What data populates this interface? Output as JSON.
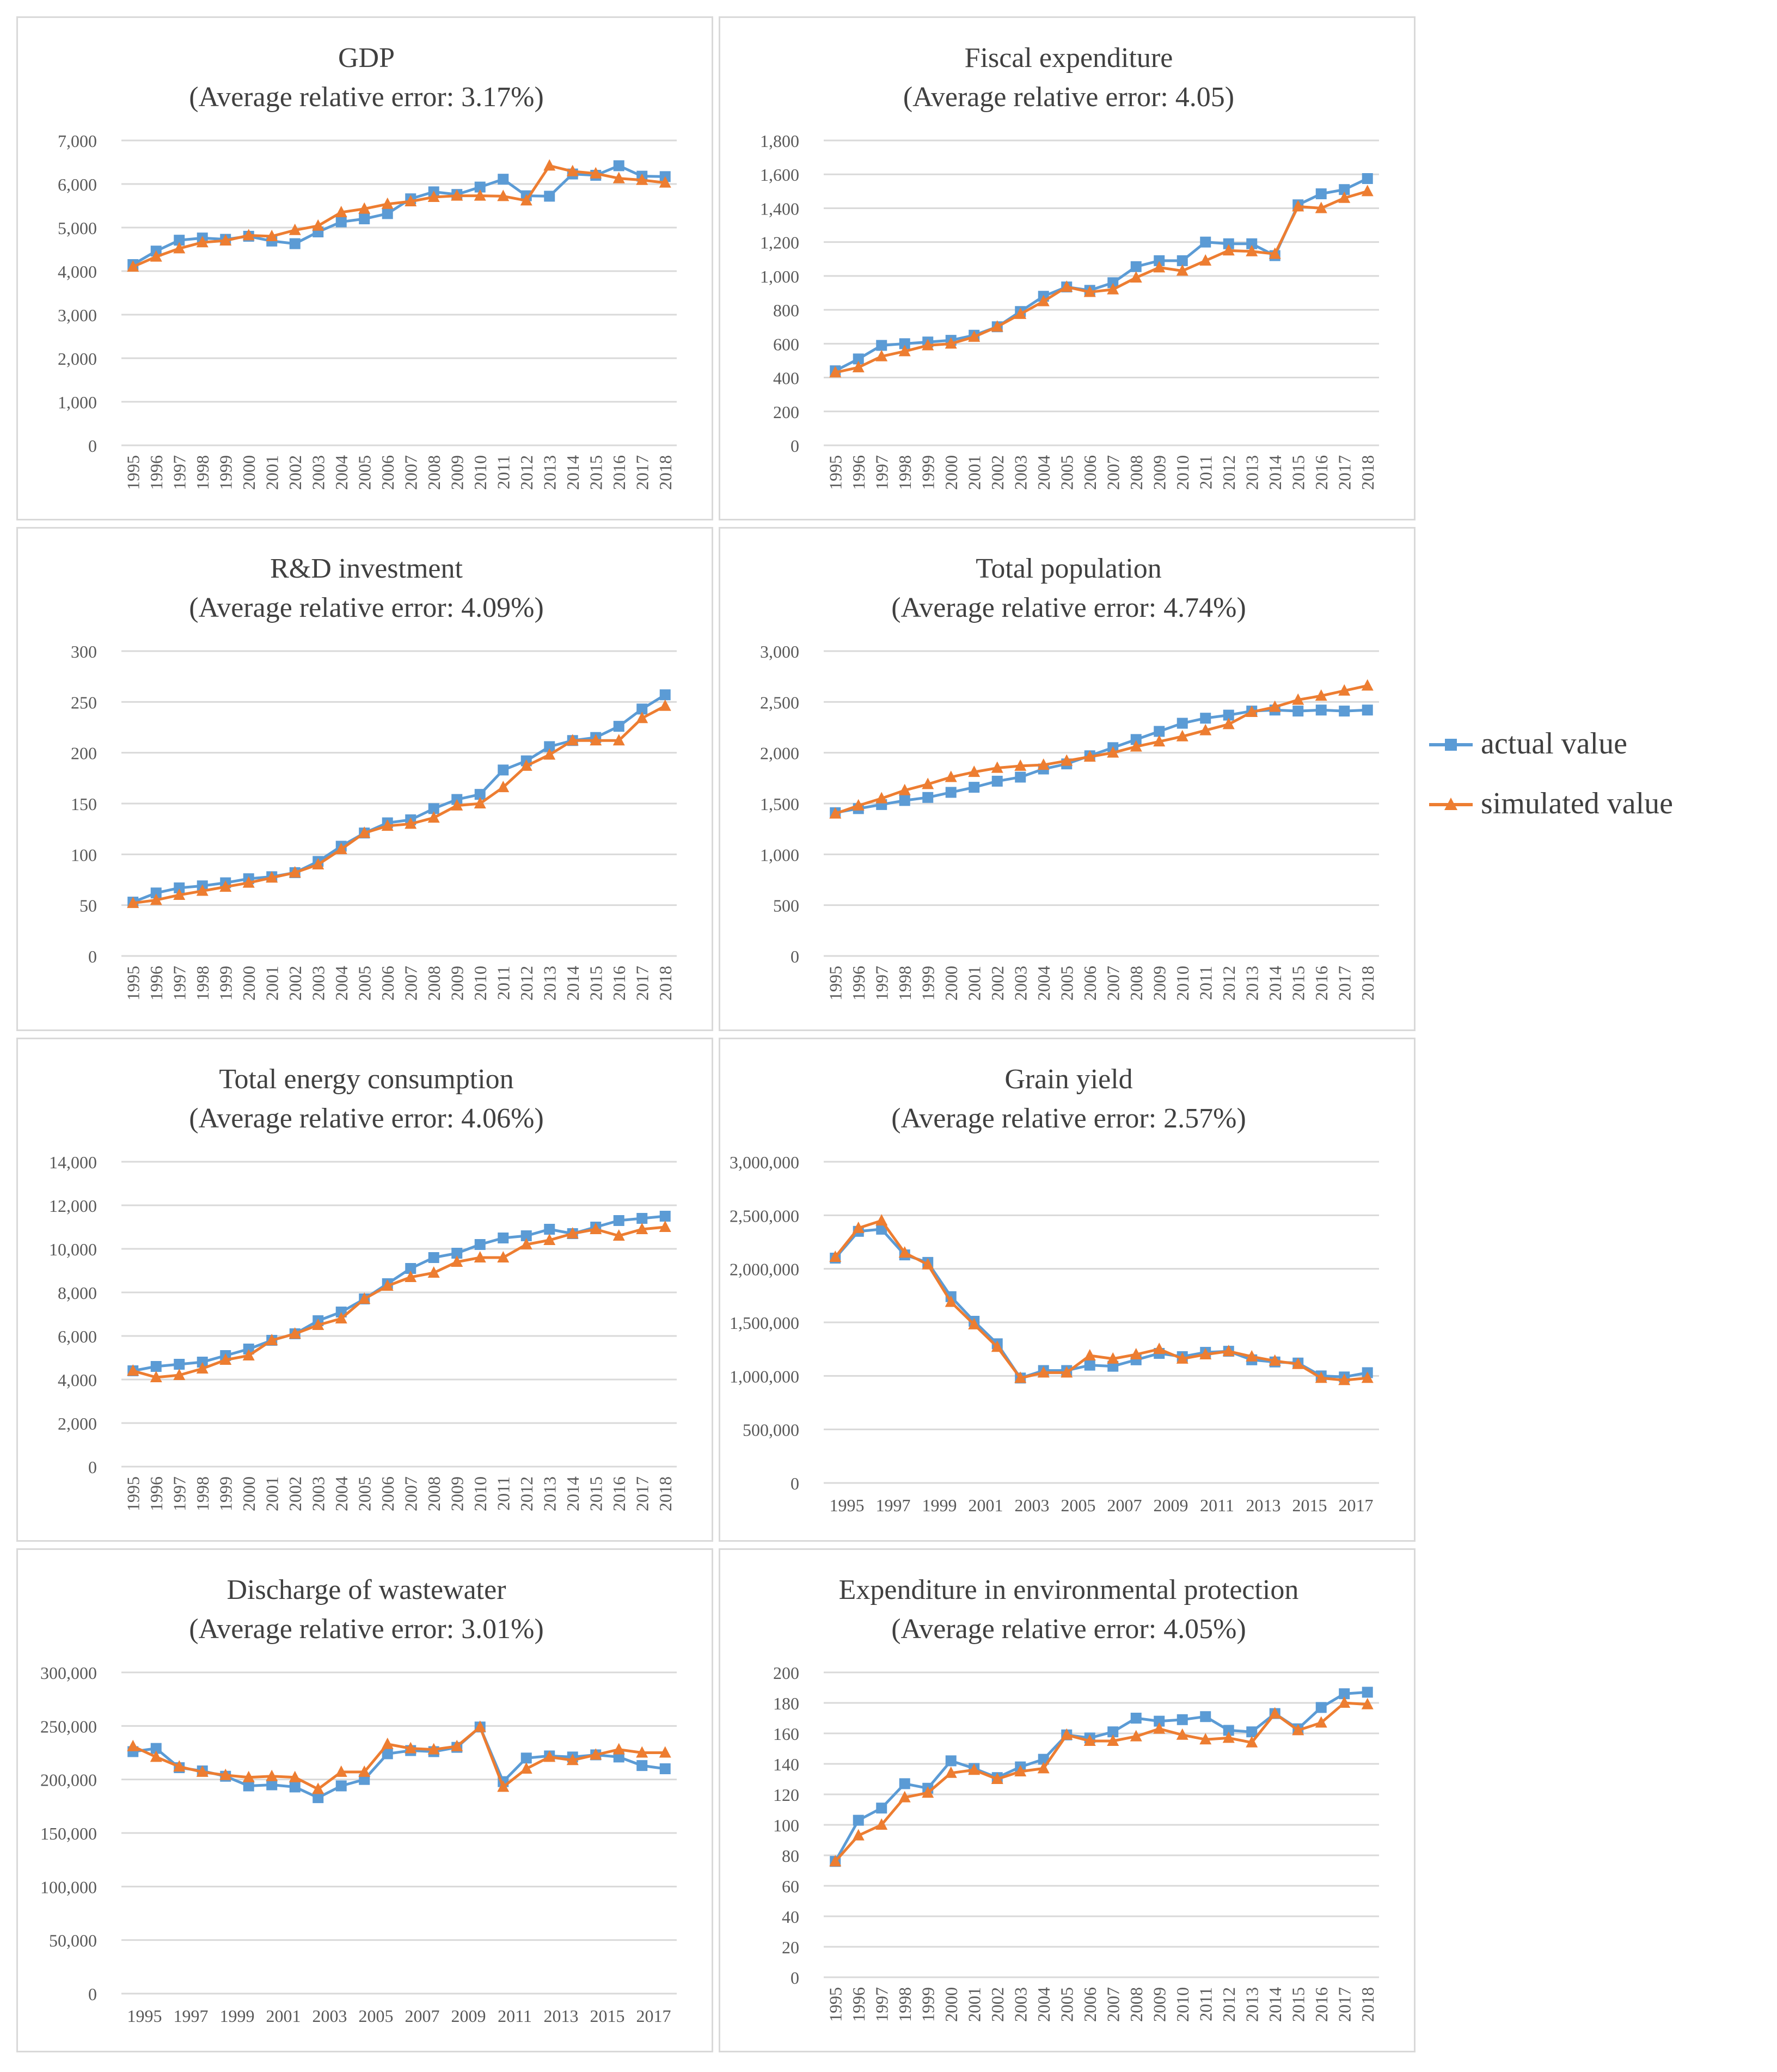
{
  "legend": {
    "actual_label": "actual value",
    "simulated_label": "simulated value",
    "actual_color": "#5b9bd5",
    "simulated_color": "#ed7d31"
  },
  "chart_data": [
    {
      "type": "line",
      "title": "GDP",
      "subtitle": "(Average  relative  error:  3.17%)",
      "ylim": [
        0,
        7000
      ],
      "yticks": [
        "0",
        "1,000",
        "2,000",
        "3,000",
        "4,000",
        "5,000",
        "6,000",
        "7,000"
      ],
      "x": [
        "1995",
        "1996",
        "1997",
        "1998",
        "1999",
        "2000",
        "2001",
        "2002",
        "2003",
        "2004",
        "2005",
        "2006",
        "2007",
        "2008",
        "2009",
        "2010",
        "2011",
        "2012",
        "2013",
        "2014",
        "2015",
        "2016",
        "2017",
        "2018"
      ],
      "xtick_step": 1,
      "xtick_rotate": true,
      "series": [
        {
          "name": "actual value",
          "values": [
            4150,
            4460,
            4710,
            4760,
            4730,
            4800,
            4690,
            4630,
            4900,
            5130,
            5200,
            5320,
            5660,
            5820,
            5760,
            5930,
            6110,
            5730,
            5720,
            6230,
            6200,
            6420,
            6180,
            6170
          ]
        },
        {
          "name": "simulated value",
          "values": [
            4100,
            4330,
            4520,
            4660,
            4700,
            4820,
            4800,
            4940,
            5040,
            5350,
            5430,
            5540,
            5600,
            5700,
            5730,
            5730,
            5720,
            5620,
            6420,
            6290,
            6240,
            6130,
            6090,
            6030
          ]
        }
      ]
    },
    {
      "type": "line",
      "title": "Fiscal  expenditure",
      "subtitle": "(Average  relative  error:  4.05)",
      "ylim": [
        0,
        1800
      ],
      "yticks": [
        "0",
        "200",
        "400",
        "600",
        "800",
        "1,000",
        "1,200",
        "1,400",
        "1,600",
        "1,800"
      ],
      "x": [
        "1995",
        "1996",
        "1997",
        "1998",
        "1999",
        "2000",
        "2001",
        "2002",
        "2003",
        "2004",
        "2005",
        "2006",
        "2007",
        "2008",
        "2009",
        "2010",
        "2011",
        "2012",
        "2013",
        "2014",
        "2015",
        "2016",
        "2017",
        "2018"
      ],
      "xtick_step": 1,
      "xtick_rotate": true,
      "series": [
        {
          "name": "actual value",
          "values": [
            440,
            510,
            590,
            600,
            610,
            620,
            650,
            700,
            790,
            880,
            935,
            915,
            960,
            1055,
            1090,
            1090,
            1200,
            1190,
            1190,
            1120,
            1420,
            1485,
            1510,
            1575
          ]
        },
        {
          "name": "simulated value",
          "values": [
            430,
            460,
            525,
            555,
            590,
            600,
            640,
            700,
            775,
            850,
            935,
            905,
            920,
            990,
            1050,
            1030,
            1090,
            1150,
            1145,
            1130,
            1410,
            1400,
            1460,
            1500
          ]
        }
      ]
    },
    {
      "type": "line",
      "title": "R&D  investment",
      "subtitle": "(Average  relative  error:  4.09%)",
      "ylim": [
        0,
        300
      ],
      "yticks": [
        "0",
        "50",
        "100",
        "150",
        "200",
        "250",
        "300"
      ],
      "x": [
        "1995",
        "1996",
        "1997",
        "1998",
        "1999",
        "2000",
        "2001",
        "2002",
        "2003",
        "2004",
        "2005",
        "2006",
        "2007",
        "2008",
        "2009",
        "2010",
        "2011",
        "2012",
        "2013",
        "2014",
        "2015",
        "2016",
        "2017",
        "2018"
      ],
      "xtick_step": 1,
      "xtick_rotate": true,
      "series": [
        {
          "name": "actual value",
          "values": [
            53,
            62,
            67,
            69,
            72,
            76,
            78,
            82,
            93,
            108,
            121,
            131,
            134,
            145,
            154,
            159,
            183,
            192,
            206,
            212,
            215,
            226,
            243,
            257
          ]
        },
        {
          "name": "simulated value",
          "values": [
            52,
            55,
            60,
            64,
            68,
            72,
            77,
            82,
            90,
            105,
            121,
            128,
            130,
            136,
            148,
            150,
            166,
            187,
            198,
            212,
            212,
            212,
            234,
            246
          ]
        }
      ]
    },
    {
      "type": "line",
      "title": "Total  population",
      "subtitle": "(Average  relative  error:  4.74%)",
      "ylim": [
        0,
        3000
      ],
      "yticks": [
        "0",
        "500",
        "1,000",
        "1,500",
        "2,000",
        "2,500",
        "3,000"
      ],
      "x": [
        "1995",
        "1996",
        "1997",
        "1998",
        "1999",
        "2000",
        "2001",
        "2002",
        "2003",
        "2004",
        "2005",
        "2006",
        "2007",
        "2008",
        "2009",
        "2010",
        "2011",
        "2012",
        "2013",
        "2014",
        "2015",
        "2016",
        "2017",
        "2018"
      ],
      "xtick_step": 1,
      "xtick_rotate": true,
      "series": [
        {
          "name": "actual value",
          "values": [
            1410,
            1450,
            1490,
            1530,
            1560,
            1610,
            1660,
            1720,
            1760,
            1840,
            1890,
            1970,
            2050,
            2130,
            2210,
            2290,
            2340,
            2370,
            2410,
            2420,
            2410,
            2420,
            2410,
            2420
          ]
        },
        {
          "name": "simulated value",
          "values": [
            1400,
            1480,
            1550,
            1630,
            1690,
            1760,
            1810,
            1850,
            1870,
            1880,
            1920,
            1960,
            2000,
            2060,
            2110,
            2160,
            2220,
            2280,
            2400,
            2450,
            2520,
            2560,
            2610,
            2660
          ]
        }
      ]
    },
    {
      "type": "line",
      "title": "Total  energy  consumption",
      "subtitle": "(Average  relative  error:  4.06%)",
      "ylim": [
        0,
        14000
      ],
      "yticks": [
        "0",
        "2,000",
        "4,000",
        "6,000",
        "8,000",
        "10,000",
        "12,000",
        "14,000"
      ],
      "x": [
        "1995",
        "1996",
        "1997",
        "1998",
        "1999",
        "2000",
        "2001",
        "2002",
        "2003",
        "2004",
        "2005",
        "2006",
        "2007",
        "2008",
        "2009",
        "2010",
        "2011",
        "2012",
        "2013",
        "2014",
        "2015",
        "2016",
        "2017",
        "2018"
      ],
      "xtick_step": 1,
      "xtick_rotate": true,
      "series": [
        {
          "name": "actual value",
          "values": [
            4400,
            4600,
            4700,
            4800,
            5100,
            5400,
            5800,
            6100,
            6700,
            7100,
            7700,
            8400,
            9100,
            9600,
            9800,
            10200,
            10500,
            10600,
            10900,
            10700,
            11000,
            11300,
            11400,
            11500
          ]
        },
        {
          "name": "simulated value",
          "values": [
            4400,
            4100,
            4200,
            4500,
            4900,
            5100,
            5800,
            6100,
            6500,
            6800,
            7700,
            8300,
            8700,
            8900,
            9400,
            9600,
            9600,
            10200,
            10400,
            10700,
            10900,
            10600,
            10900,
            11000
          ]
        }
      ]
    },
    {
      "type": "line",
      "title": "Grain  yield",
      "subtitle": "(Average  relative  error:  2.57%)",
      "ylim": [
        0,
        3000000
      ],
      "yticks": [
        "0",
        "500,000",
        "1,000,000",
        "1,500,000",
        "2,000,000",
        "2,500,000",
        "3,000,000"
      ],
      "x": [
        "1995",
        "1996",
        "1997",
        "1998",
        "1999",
        "2000",
        "2001",
        "2002",
        "2003",
        "2004",
        "2005",
        "2006",
        "2007",
        "2008",
        "2009",
        "2010",
        "2011",
        "2012",
        "2013",
        "2014",
        "2015",
        "2016",
        "2017",
        "2018"
      ],
      "xtick_step": 2,
      "xtick_rotate": false,
      "series": [
        {
          "name": "actual value",
          "values": [
            2100000,
            2350000,
            2370000,
            2130000,
            2060000,
            1740000,
            1510000,
            1300000,
            980000,
            1050000,
            1050000,
            1100000,
            1090000,
            1150000,
            1210000,
            1180000,
            1220000,
            1230000,
            1150000,
            1130000,
            1120000,
            1000000,
            990000,
            1030000
          ]
        },
        {
          "name": "simulated value",
          "values": [
            2110000,
            2380000,
            2450000,
            2150000,
            2040000,
            1690000,
            1480000,
            1270000,
            980000,
            1030000,
            1030000,
            1190000,
            1160000,
            1200000,
            1250000,
            1160000,
            1200000,
            1230000,
            1180000,
            1140000,
            1110000,
            980000,
            960000,
            980000
          ]
        }
      ]
    },
    {
      "type": "line",
      "title": "Discharge  of  wastewater",
      "subtitle": "(Average  relative  error:  3.01%)",
      "ylim": [
        0,
        300000
      ],
      "yticks": [
        "0",
        "50,000",
        "100,000",
        "150,000",
        "200,000",
        "250,000",
        "300,000"
      ],
      "x": [
        "1995",
        "1996",
        "1997",
        "1998",
        "1999",
        "2000",
        "2001",
        "2002",
        "2003",
        "2004",
        "2005",
        "2006",
        "2007",
        "2008",
        "2009",
        "2010",
        "2011",
        "2012",
        "2013",
        "2014",
        "2015",
        "2016",
        "2017",
        "2018"
      ],
      "xtick_step": 2,
      "xtick_rotate": false,
      "series": [
        {
          "name": "actual value",
          "values": [
            226000,
            229000,
            211000,
            208000,
            203000,
            194000,
            195000,
            193000,
            183000,
            194000,
            200000,
            224000,
            227000,
            226000,
            230000,
            249000,
            198000,
            220000,
            222000,
            221000,
            223000,
            221000,
            213000,
            210000
          ]
        },
        {
          "name": "simulated value",
          "values": [
            231000,
            221000,
            212000,
            207000,
            204000,
            202000,
            203000,
            202000,
            191000,
            207000,
            207000,
            233000,
            229000,
            228000,
            231000,
            249000,
            193000,
            210000,
            221000,
            218000,
            223000,
            228000,
            225000,
            225000
          ]
        }
      ]
    },
    {
      "type": "line",
      "title": "Expenditure  in  environmental  protection",
      "subtitle": "(Average  relative  error:  4.05%)",
      "ylim": [
        0,
        200
      ],
      "yticks": [
        "0",
        "20",
        "40",
        "60",
        "80",
        "100",
        "120",
        "140",
        "160",
        "180",
        "200"
      ],
      "x": [
        "1995",
        "1996",
        "1997",
        "1998",
        "1999",
        "2000",
        "2001",
        "2002",
        "2003",
        "2004",
        "2005",
        "2006",
        "2007",
        "2008",
        "2009",
        "2010",
        "2011",
        "2012",
        "2013",
        "2014",
        "2015",
        "2016",
        "2017",
        "2018"
      ],
      "xtick_step": 1,
      "xtick_rotate": true,
      "series": [
        {
          "name": "actual value",
          "values": [
            76,
            103,
            111,
            127,
            124,
            142,
            137,
            131,
            138,
            143,
            159,
            157,
            161,
            170,
            168,
            169,
            171,
            162,
            161,
            173,
            163,
            177,
            186,
            187
          ]
        },
        {
          "name": "simulated value",
          "values": [
            76,
            93,
            100,
            118,
            121,
            134,
            136,
            130,
            135,
            137,
            159,
            155,
            155,
            158,
            163,
            159,
            156,
            157,
            154,
            173,
            162,
            167,
            180,
            179
          ]
        }
      ]
    }
  ]
}
